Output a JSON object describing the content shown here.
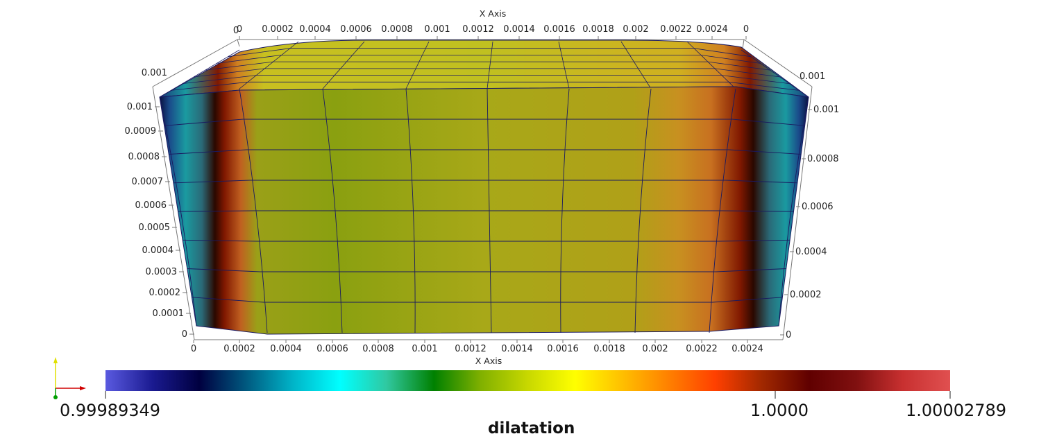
{
  "axes": {
    "top_x_title": "X Axis",
    "bottom_x_title": "X Axis",
    "top_x_ticks": [
      "0",
      "0.0002",
      "0.0004",
      "0.0006",
      "0.0008",
      "0.001",
      "0.0012",
      "0.0014",
      "0.0016",
      "0.0018",
      "0.002",
      "0.0022",
      "0.0024",
      "0"
    ],
    "top_x_first_extra": "0",
    "bottom_x_ticks": [
      "0",
      "0.0002",
      "0.0004",
      "0.0006",
      "0.0008",
      "0.001",
      "0.0012",
      "0.0014",
      "0.0016",
      "0.0018",
      "0.002",
      "0.0022",
      "0.0024"
    ],
    "left_y_ticks": [
      "0",
      "0.0001",
      "0.0002",
      "0.0003",
      "0.0004",
      "0.0005",
      "0.0006",
      "0.0007",
      "0.0008",
      "0.0009",
      "0.001"
    ],
    "left_corner_tick": "0.001",
    "right_y_ticks": [
      "0",
      "0.0002",
      "0.0004",
      "0.0006",
      "0.0008",
      "0.001"
    ],
    "right_corner_tick": "0.001"
  },
  "colorbar": {
    "title": "dilatation",
    "min_label": "0.99989349",
    "mid_label": "1.0000",
    "max_label": "1.00002789",
    "stops": [
      "#5a5ae0",
      "#1a1a90",
      "#000040",
      "#005a80",
      "#00b4c8",
      "#00ffff",
      "#30c8a0",
      "#008000",
      "#80b000",
      "#c8d800",
      "#ffff00",
      "#ffc000",
      "#ff8000",
      "#ff4000",
      "#a02800",
      "#600000",
      "#801010",
      "#c83030",
      "#e05050"
    ]
  },
  "colors": {
    "mesh_center": "#a0a818",
    "mesh_mid": "#c8a020",
    "mesh_orange": "#d08020",
    "mesh_red": "#801800",
    "mesh_dark": "#2a0800",
    "mesh_teal": "#1a9aa0",
    "mesh_blue": "#1a4a8a",
    "mesh_navy": "#0a1040",
    "grid_line": "#1a1a60"
  },
  "orientation_icon": "xyz-axes-triad-icon"
}
